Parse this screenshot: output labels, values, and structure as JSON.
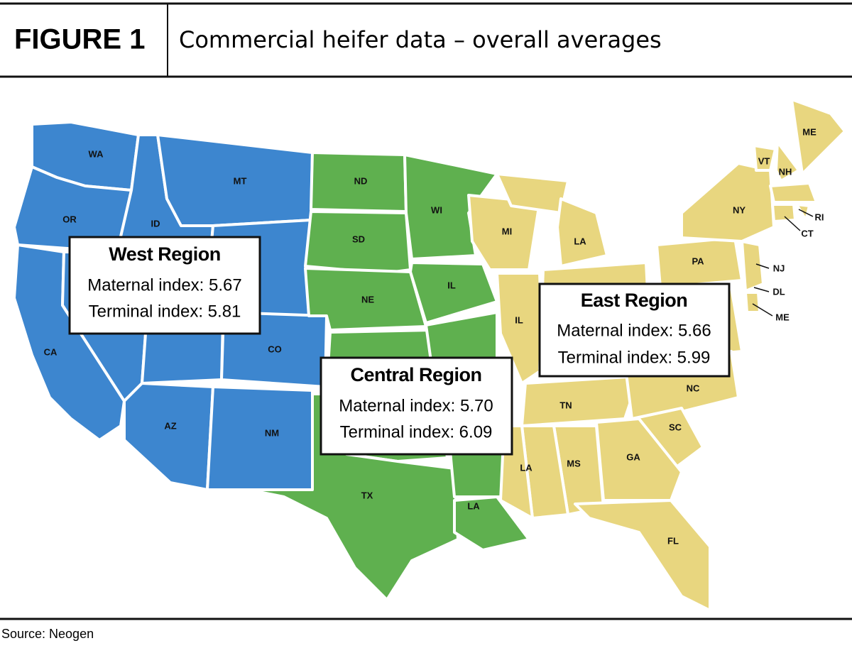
{
  "header": {
    "figure": "FIGURE 1",
    "title": "Commercial heifer data – overall averages"
  },
  "map": {
    "west": {
      "color": "#3d86cf",
      "states": [
        "WA",
        "OR",
        "ID",
        "MT",
        "CA",
        "CO",
        "AZ",
        "NM"
      ]
    },
    "central": {
      "color": "#5fb04f",
      "states": [
        "ND",
        "SD",
        "NE",
        "TX",
        "LA",
        "WI",
        "IL"
      ]
    },
    "east": {
      "color": "#e8d67f",
      "states": [
        "MI",
        "LA",
        "IL",
        "TN",
        "NC",
        "SC",
        "GA",
        "MS",
        "LA",
        "FL",
        "PA",
        "NY",
        "VT",
        "NH",
        "ME",
        "RI",
        "CT",
        "NJ",
        "DL",
        "ME"
      ]
    }
  },
  "regions": [
    {
      "name": "West Region",
      "lines": [
        "Maternal index: 5.67",
        "Terminal index: 5.81"
      ]
    },
    {
      "name": "East Region",
      "lines": [
        "Maternal index: 5.66",
        "Terminal index: 5.99"
      ]
    },
    {
      "name": "Central Region",
      "lines": [
        "Maternal index: 5.70",
        "Terminal index: 6.09"
      ]
    }
  ],
  "source": "Source: Neogen"
}
